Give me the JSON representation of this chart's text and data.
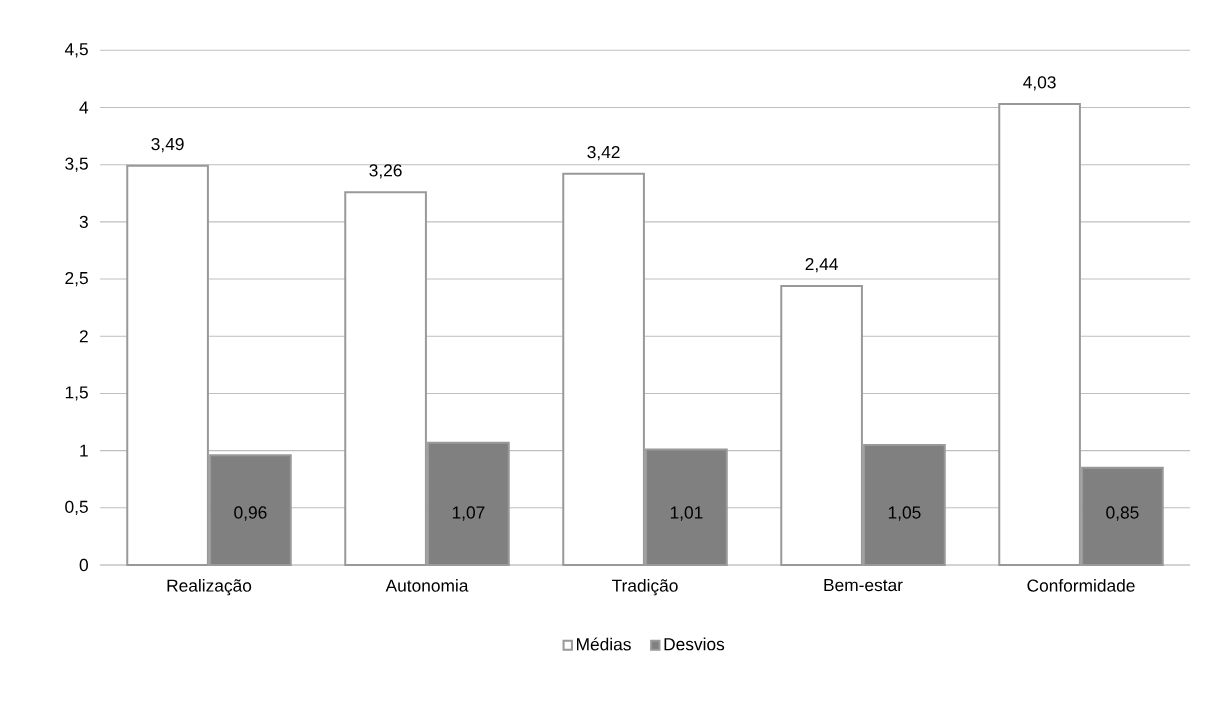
{
  "chart_data": {
    "type": "bar",
    "categories": [
      "Realização",
      "Autonomia",
      "Tradição",
      "Bem-estar",
      "Conformidade"
    ],
    "series": [
      {
        "name": "Médias",
        "color": "#ffffff",
        "values": [
          3.49,
          3.26,
          3.42,
          2.44,
          4.03
        ],
        "value_labels": [
          "3,49",
          "3,26",
          "3,42",
          "2,44",
          "4,03"
        ]
      },
      {
        "name": "Desvios",
        "color": "#808080",
        "values": [
          0.96,
          1.07,
          1.01,
          1.05,
          0.85
        ],
        "value_labels": [
          "0,96",
          "1,07",
          "1,01",
          "1,05",
          "0,85"
        ]
      }
    ],
    "ylim": [
      0,
      4.5
    ],
    "yticks": [
      0,
      {
        "value": 0.5,
        "label": "0,5"
      },
      1,
      {
        "value": 1.5,
        "label": "1,5"
      },
      2,
      {
        "value": 2.5,
        "label": "2,5"
      },
      3,
      {
        "value": 3.5,
        "label": "3,5"
      },
      4,
      {
        "value": 4.5,
        "label": "4,5"
      }
    ],
    "grid": "y",
    "legend": "bottom"
  }
}
